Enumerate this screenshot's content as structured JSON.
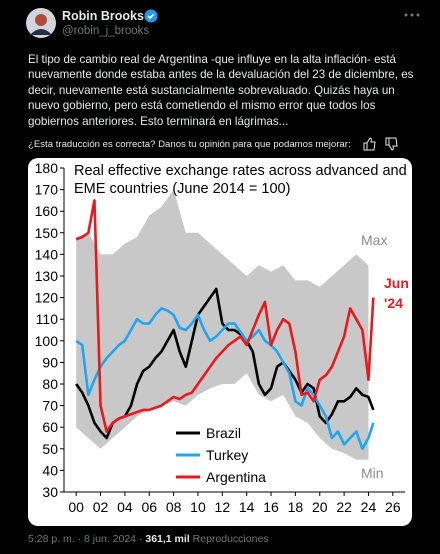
{
  "header": {
    "name": "Robin Brooks",
    "handle": "@robin_j_brooks"
  },
  "body": "El tipo de cambio real de Argentina -que influye en la alta inflación- está nuevamente donde estaba antes de la devaluación del 23 de diciembre, es decir, nuevamente está sustancialmente sobrevaluado. Quizás haya un nuevo gobierno, pero está cometiendo el mismo error que todos los gobiernos anteriores. Esto terminará en lágrimas...",
  "translation_prompt": "¿Esta traducción es correcta? Danos tu opinión para que podamos mejorar:",
  "chart_data": {
    "type": "line",
    "title": [
      "Real effective exchange rates across advanced and",
      "EME countries (June 2014 = 100)"
    ],
    "xlim": [
      -1,
      27
    ],
    "ylim": [
      30,
      180
    ],
    "xticks": [
      {
        "value": 0,
        "label": "00"
      },
      {
        "value": 2,
        "label": "02"
      },
      {
        "value": 4,
        "label": "04"
      },
      {
        "value": 6,
        "label": "06"
      },
      {
        "value": 8,
        "label": "08"
      },
      10,
      12,
      14,
      16,
      18,
      20,
      22,
      24,
      26
    ],
    "yticks": [
      30,
      40,
      50,
      60,
      70,
      80,
      90,
      100,
      110,
      120,
      130,
      140,
      150,
      160,
      170,
      180
    ],
    "x": [
      0,
      0.5,
      1,
      1.5,
      2,
      2.5,
      3,
      3.5,
      4,
      4.5,
      5,
      5.5,
      6,
      6.5,
      7,
      7.5,
      8,
      8.5,
      9,
      9.5,
      10,
      10.5,
      11,
      11.5,
      12,
      12.5,
      13,
      13.5,
      14,
      14.5,
      15,
      15.5,
      16,
      16.5,
      17,
      17.5,
      18,
      18.5,
      19,
      19.5,
      20,
      20.5,
      21,
      21.5,
      22,
      22.5,
      23,
      23.5,
      24,
      24.4
    ],
    "band": {
      "color": "#c8c8c8",
      "max_label": "Max",
      "min_label": "Min",
      "x": [
        0,
        1,
        2,
        3,
        4,
        5,
        6,
        7,
        8,
        9,
        10,
        11,
        12,
        13,
        14,
        15,
        16,
        17,
        18,
        19,
        20,
        21,
        22,
        23,
        24
      ],
      "upper": [
        148,
        150,
        140,
        140,
        145,
        148,
        158,
        162,
        170,
        150,
        150,
        145,
        140,
        135,
        130,
        135,
        132,
        135,
        128,
        128,
        125,
        130,
        135,
        140,
        135
      ],
      "lower": [
        60,
        55,
        50,
        55,
        60,
        65,
        68,
        70,
        72,
        70,
        75,
        78,
        80,
        80,
        85,
        75,
        72,
        75,
        65,
        62,
        55,
        50,
        48,
        45,
        45
      ]
    },
    "series": [
      {
        "name": "Brazil",
        "color": "#000000",
        "values": [
          80,
          76,
          70,
          62,
          58,
          55,
          62,
          64,
          65,
          70,
          80,
          86,
          88,
          92,
          95,
          100,
          105,
          95,
          88,
          100,
          112,
          116,
          120,
          124,
          108,
          105,
          105,
          103,
          100,
          95,
          80,
          75,
          78,
          88,
          90,
          86,
          82,
          76,
          80,
          78,
          65,
          62,
          66,
          72,
          72,
          74,
          78,
          75,
          74,
          68
        ]
      },
      {
        "name": "Turkey",
        "color": "#1ea7f0",
        "values": [
          100,
          98,
          75,
          82,
          88,
          92,
          95,
          98,
          100,
          105,
          110,
          108,
          108,
          112,
          115,
          114,
          112,
          106,
          105,
          108,
          112,
          105,
          100,
          102,
          105,
          108,
          108,
          104,
          100,
          102,
          105,
          100,
          98,
          95,
          90,
          85,
          72,
          70,
          78,
          75,
          70,
          65,
          55,
          58,
          52,
          55,
          58,
          50,
          55,
          62
        ]
      },
      {
        "name": "Argentina",
        "color": "#e8191c",
        "values": [
          147,
          148,
          150,
          165,
          70,
          58,
          62,
          64,
          65,
          66,
          67,
          68,
          68,
          69,
          70,
          72,
          74,
          73,
          75,
          76,
          80,
          84,
          88,
          92,
          95,
          98,
          100,
          102,
          98,
          105,
          112,
          118,
          98,
          105,
          110,
          108,
          95,
          75,
          76,
          72,
          82,
          84,
          88,
          95,
          102,
          115,
          110,
          105,
          82,
          120
        ]
      }
    ],
    "end_label": [
      "Jun",
      "'24"
    ]
  },
  "footer": {
    "time": "5:28 p. m.",
    "separator": "·",
    "date": "8 jun. 2024",
    "views": "361,1 mil",
    "views_label": "Reproducciones"
  }
}
